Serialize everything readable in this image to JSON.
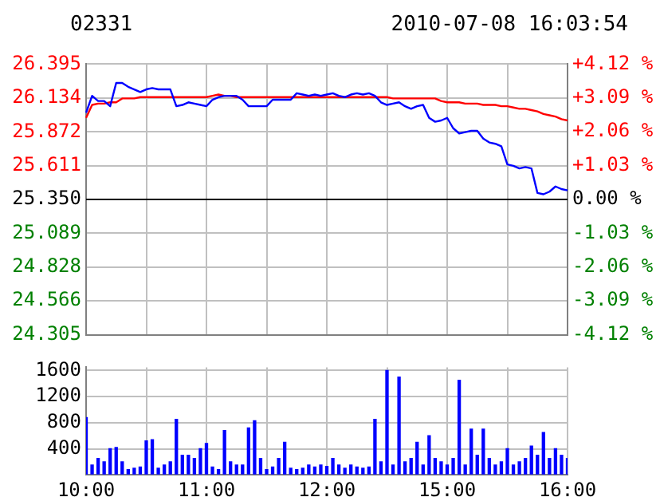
{
  "chart_data": [
    {
      "type": "line",
      "title": "02331",
      "subtitle": "2010-07-08 16:03:54",
      "tick_labels": "y",
      "grid": true,
      "marker": "none",
      "categories": [
        null,
        null,
        null,
        null,
        null,
        null,
        null,
        null,
        null,
        null,
        null,
        null,
        null,
        null,
        null,
        null,
        null,
        null,
        null,
        null,
        null,
        null,
        null,
        null,
        null,
        null,
        null,
        null,
        null,
        null,
        null,
        null,
        null,
        null,
        null,
        null,
        null,
        null,
        null,
        null,
        null,
        null,
        null,
        null,
        null,
        null,
        null,
        null,
        null,
        null,
        null,
        null,
        null,
        null,
        null,
        null,
        null,
        null,
        null,
        null,
        null,
        null,
        null,
        null,
        null,
        null,
        null,
        null,
        null,
        null,
        null,
        null,
        null,
        null,
        null,
        null,
        null,
        null,
        null,
        null,
        null
      ],
      "ylim": [
        24.305,
        26.395
      ],
      "yticks": [
        {
          "value": 24.305,
          "label": "24.305"
        },
        {
          "value": 24.566,
          "label": "24.566"
        },
        {
          "value": 24.828,
          "label": "24.828"
        },
        {
          "value": 25.089,
          "label": "25.089"
        },
        {
          "value": 25.35,
          "label": "25.350"
        },
        {
          "value": 25.611,
          "label": "25.611"
        },
        {
          "value": 25.872,
          "label": "25.872"
        },
        {
          "value": 26.134,
          "label": "26.134"
        },
        {
          "value": 26.395,
          "label": "26.395"
        }
      ],
      "y2lim": [
        -4.12,
        4.12
      ],
      "y2ticks": [
        {
          "value": -4.12,
          "label": "-4.12 %"
        },
        {
          "value": -3.09,
          "label": "-3.09 %"
        },
        {
          "value": -2.06,
          "label": "-2.06 %"
        },
        {
          "value": -1.03,
          "label": "-1.03 %"
        },
        {
          "value": 0,
          "label": "0.00 %"
        },
        {
          "value": 1.03,
          "label": "+1.03 %"
        },
        {
          "value": 2.06,
          "label": "+2.06 %"
        },
        {
          "value": 3.09,
          "label": "+3.09 %"
        },
        {
          "value": 4.12,
          "label": "+4.12 %"
        }
      ],
      "ref_lines": [
        {
          "axis": "y",
          "value": 25.35,
          "color": "#000000"
        }
      ],
      "series": [
        {
          "color": "#0000ff",
          "values": [
            26.02,
            26.15,
            26.11,
            26.11,
            26.07,
            26.25,
            26.25,
            26.22,
            26.2,
            26.18,
            26.2,
            26.21,
            26.2,
            26.2,
            26.2,
            26.07,
            26.08,
            26.1,
            26.09,
            26.08,
            26.07,
            26.12,
            26.14,
            26.15,
            26.15,
            26.15,
            26.12,
            26.07,
            26.07,
            26.07,
            26.07,
            26.12,
            26.12,
            26.12,
            26.12,
            26.17,
            26.16,
            26.15,
            26.16,
            26.15,
            26.16,
            26.17,
            26.15,
            26.14,
            26.16,
            26.17,
            26.16,
            26.17,
            26.15,
            26.1,
            26.08,
            26.09,
            26.1,
            26.07,
            26.05,
            26.07,
            26.08,
            25.98,
            25.95,
            25.96,
            25.98,
            25.9,
            25.86,
            25.87,
            25.88,
            25.88,
            25.82,
            25.79,
            25.78,
            25.76,
            25.62,
            25.61,
            25.59,
            25.6,
            25.59,
            25.4,
            25.39,
            25.41,
            25.45,
            25.43,
            25.42
          ]
        },
        {
          "color": "#ff0000",
          "values": [
            25.98,
            26.08,
            26.09,
            26.09,
            26.1,
            26.1,
            26.13,
            26.13,
            26.13,
            26.14,
            26.14,
            26.14,
            26.14,
            26.14,
            26.14,
            26.14,
            26.14,
            26.14,
            26.14,
            26.14,
            26.14,
            26.15,
            26.16,
            26.15,
            26.15,
            26.14,
            26.14,
            26.14,
            26.14,
            26.14,
            26.14,
            26.14,
            26.14,
            26.14,
            26.14,
            26.14,
            26.14,
            26.14,
            26.14,
            26.14,
            26.14,
            26.14,
            26.14,
            26.14,
            26.14,
            26.14,
            26.14,
            26.14,
            26.14,
            26.14,
            26.14,
            26.13,
            26.13,
            26.13,
            26.13,
            26.13,
            26.13,
            26.13,
            26.13,
            26.11,
            26.1,
            26.1,
            26.1,
            26.09,
            26.09,
            26.09,
            26.08,
            26.08,
            26.08,
            26.07,
            26.07,
            26.06,
            26.05,
            26.05,
            26.04,
            26.03,
            26.01,
            26.0,
            25.99,
            25.97,
            25.96
          ]
        }
      ]
    },
    {
      "type": "bar",
      "grid": true,
      "categories": [
        "10:00",
        null,
        null,
        null,
        null,
        null,
        null,
        null,
        null,
        null,
        null,
        null,
        null,
        null,
        null,
        null,
        null,
        null,
        null,
        null,
        "11:00",
        null,
        null,
        null,
        null,
        null,
        null,
        null,
        null,
        null,
        null,
        null,
        null,
        null,
        null,
        null,
        null,
        null,
        null,
        null,
        "12:00",
        null,
        null,
        null,
        null,
        null,
        null,
        null,
        null,
        null,
        null,
        null,
        null,
        null,
        null,
        null,
        null,
        null,
        null,
        null,
        "15:00",
        null,
        null,
        null,
        null,
        null,
        null,
        null,
        null,
        null,
        null,
        null,
        null,
        null,
        null,
        null,
        null,
        null,
        null,
        null,
        "16:00"
      ],
      "ylim": [
        0,
        1650
      ],
      "yticks": [
        {
          "value": 0,
          "label": null
        },
        400,
        800,
        1200,
        1600
      ],
      "series": [
        {
          "color": "#0000ff",
          "values": [
            880,
            150,
            250,
            200,
            400,
            420,
            200,
            80,
            100,
            120,
            520,
            540,
            100,
            150,
            200,
            850,
            300,
            300,
            250,
            400,
            480,
            120,
            80,
            680,
            200,
            150,
            150,
            720,
            830,
            250,
            80,
            120,
            250,
            500,
            100,
            80,
            100,
            150,
            120,
            150,
            130,
            250,
            150,
            100,
            150,
            120,
            100,
            120,
            850,
            200,
            1600,
            150,
            1500,
            200,
            250,
            500,
            150,
            600,
            250,
            200,
            150,
            250,
            1450,
            150,
            700,
            300,
            700,
            250,
            150,
            200,
            400,
            150,
            200,
            250,
            440,
            300,
            650,
            250,
            400,
            300,
            250
          ]
        }
      ]
    }
  ]
}
